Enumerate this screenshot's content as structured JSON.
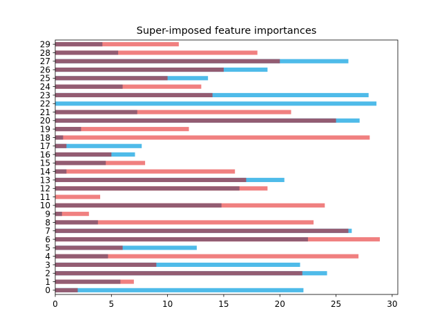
{
  "chart_data": {
    "type": "bar",
    "orientation": "horizontal",
    "title": "Super-imposed feature importances",
    "xlabel": "",
    "ylabel": "",
    "xlim": [
      0,
      30.5
    ],
    "x_ticks": [
      0,
      5,
      10,
      15,
      20,
      25,
      30
    ],
    "categories": [
      "0",
      "1",
      "2",
      "3",
      "4",
      "5",
      "6",
      "7",
      "8",
      "9",
      "10",
      "11",
      "12",
      "13",
      "14",
      "15",
      "16",
      "17",
      "18",
      "19",
      "20",
      "21",
      "22",
      "23",
      "24",
      "25",
      "26",
      "27",
      "28",
      "29"
    ],
    "grid": false,
    "legend": "none",
    "series": [
      {
        "color": "#4fbbe9",
        "values": [
          22.1,
          0,
          24.2,
          21.8,
          0,
          12.6,
          0,
          26.4,
          0,
          0,
          0,
          0,
          0,
          20.4,
          0,
          0,
          7.1,
          7.7,
          0,
          0,
          27.1,
          0,
          28.6,
          27.9,
          0,
          13.6,
          18.9,
          26.1,
          0,
          0
        ]
      },
      {
        "color": "#f08080",
        "values": [
          0,
          7.0,
          0,
          0,
          27.0,
          0,
          28.9,
          0,
          23.0,
          3.0,
          24.0,
          4.0,
          18.9,
          0,
          16.0,
          8.0,
          0,
          0,
          28.0,
          11.9,
          0,
          21.0,
          0,
          0,
          13.0,
          0,
          0,
          0,
          18.0,
          11.0
        ]
      },
      {
        "color": "#935c72",
        "values": [
          2.0,
          5.8,
          22.0,
          9.0,
          4.7,
          6.0,
          22.5,
          26.1,
          3.8,
          0.6,
          14.8,
          0,
          16.4,
          17.0,
          1.0,
          4.5,
          5.0,
          1.0,
          0.7,
          2.3,
          25.0,
          7.3,
          0,
          14.0,
          6.0,
          10.0,
          15.0,
          20.0,
          5.6,
          4.2
        ]
      }
    ]
  }
}
